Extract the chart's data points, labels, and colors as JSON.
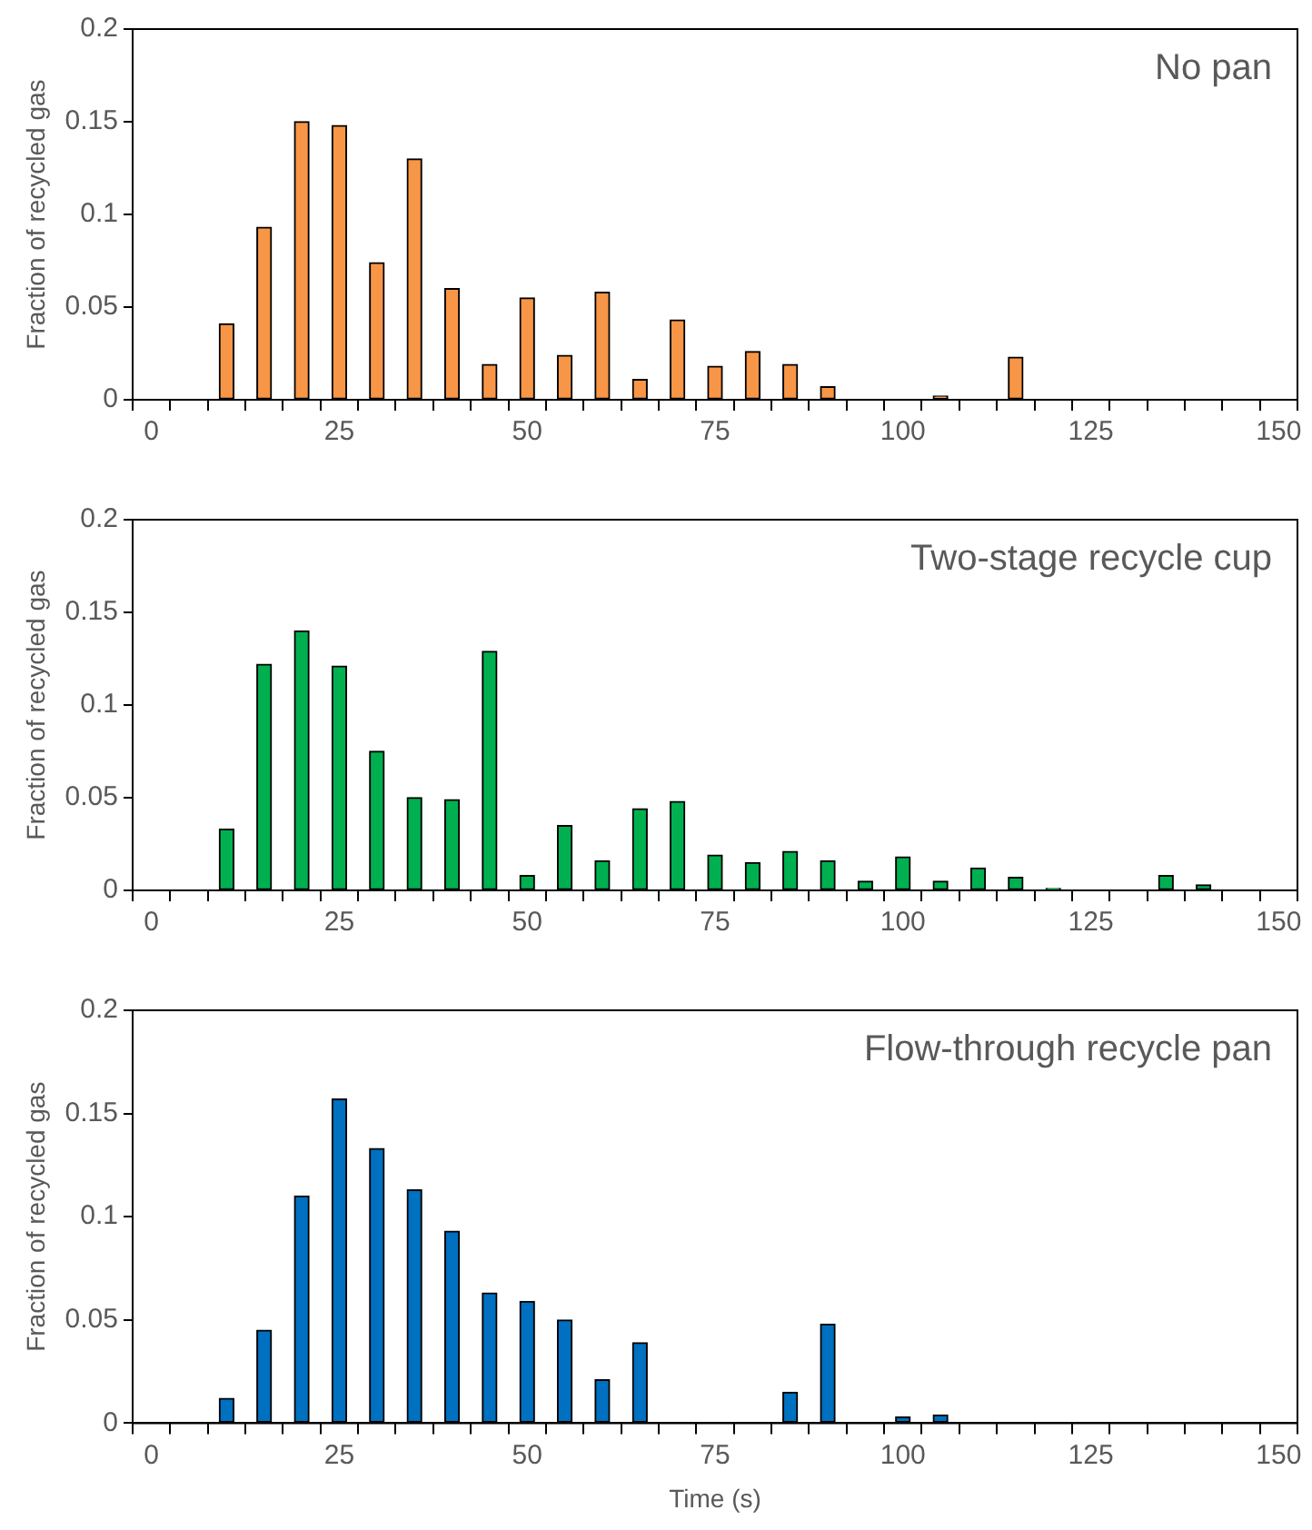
{
  "chart_data": [
    {
      "type": "bar",
      "ylabel": "Fraction of recycled gas",
      "annotations": [
        "No pan"
      ],
      "grid": false,
      "legend": false,
      "categories": [
        "0",
        null,
        null,
        null,
        null,
        "25",
        null,
        null,
        null,
        null,
        "50",
        null,
        null,
        null,
        null,
        "75",
        null,
        null,
        null,
        null,
        "100",
        null,
        null,
        null,
        null,
        "125",
        null,
        null,
        null,
        null,
        "150"
      ],
      "series": [
        {
          "color": "#f79646",
          "values": [
            null,
            null,
            0.041,
            0.093,
            0.15,
            0.148,
            0.074,
            0.13,
            0.06,
            0.019,
            0.055,
            0.024,
            0.058,
            0.011,
            0.043,
            0.018,
            0.026,
            0.019,
            0.007,
            null,
            null,
            0.002,
            null,
            0.023,
            null,
            null,
            null,
            null,
            null,
            null,
            null
          ]
        }
      ],
      "ylim": [
        0,
        0.2
      ],
      "yticks": [
        0,
        0.05,
        0.1,
        0.15,
        0.2
      ]
    },
    {
      "type": "bar",
      "ylabel": "Fraction of recycled gas",
      "annotations": [
        "Two-stage recycle cup"
      ],
      "grid": false,
      "legend": false,
      "categories": [
        "0",
        null,
        null,
        null,
        null,
        "25",
        null,
        null,
        null,
        null,
        "50",
        null,
        null,
        null,
        null,
        "75",
        null,
        null,
        null,
        null,
        "100",
        null,
        null,
        null,
        null,
        "125",
        null,
        null,
        null,
        null,
        "150"
      ],
      "series": [
        {
          "color": "#00b050",
          "values": [
            null,
            null,
            0.033,
            0.122,
            0.14,
            0.121,
            0.075,
            0.05,
            0.049,
            0.129,
            0.008,
            0.035,
            0.016,
            0.044,
            0.048,
            0.019,
            0.015,
            0.021,
            0.016,
            0.005,
            0.018,
            0.005,
            0.012,
            0.007,
            0.001,
            null,
            null,
            0.008,
            0.003,
            null,
            null
          ]
        }
      ],
      "ylim": [
        0,
        0.2
      ],
      "yticks": [
        0,
        0.05,
        0.1,
        0.15,
        0.2
      ]
    },
    {
      "type": "bar",
      "ylabel": "Fraction of recycled gas",
      "xlabel": "Time (s)",
      "annotations": [
        "Flow-through recycle pan"
      ],
      "grid": false,
      "legend": false,
      "categories": [
        "0",
        null,
        null,
        null,
        null,
        "25",
        null,
        null,
        null,
        null,
        "50",
        null,
        null,
        null,
        null,
        "75",
        null,
        null,
        null,
        null,
        "100",
        null,
        null,
        null,
        null,
        "125",
        null,
        null,
        null,
        null,
        "150"
      ],
      "series": [
        {
          "color": "#0070c0",
          "values": [
            null,
            null,
            0.012,
            0.045,
            0.11,
            0.157,
            0.133,
            0.113,
            0.093,
            0.063,
            0.059,
            0.05,
            0.021,
            0.039,
            null,
            null,
            null,
            0.015,
            0.048,
            null,
            0.003,
            0.004,
            null,
            null,
            null,
            null,
            null,
            null,
            null,
            null,
            null
          ]
        }
      ],
      "ylim": [
        0,
        0.2
      ],
      "yticks": [
        0,
        0.05,
        0.1,
        0.15,
        0.2
      ]
    }
  ]
}
